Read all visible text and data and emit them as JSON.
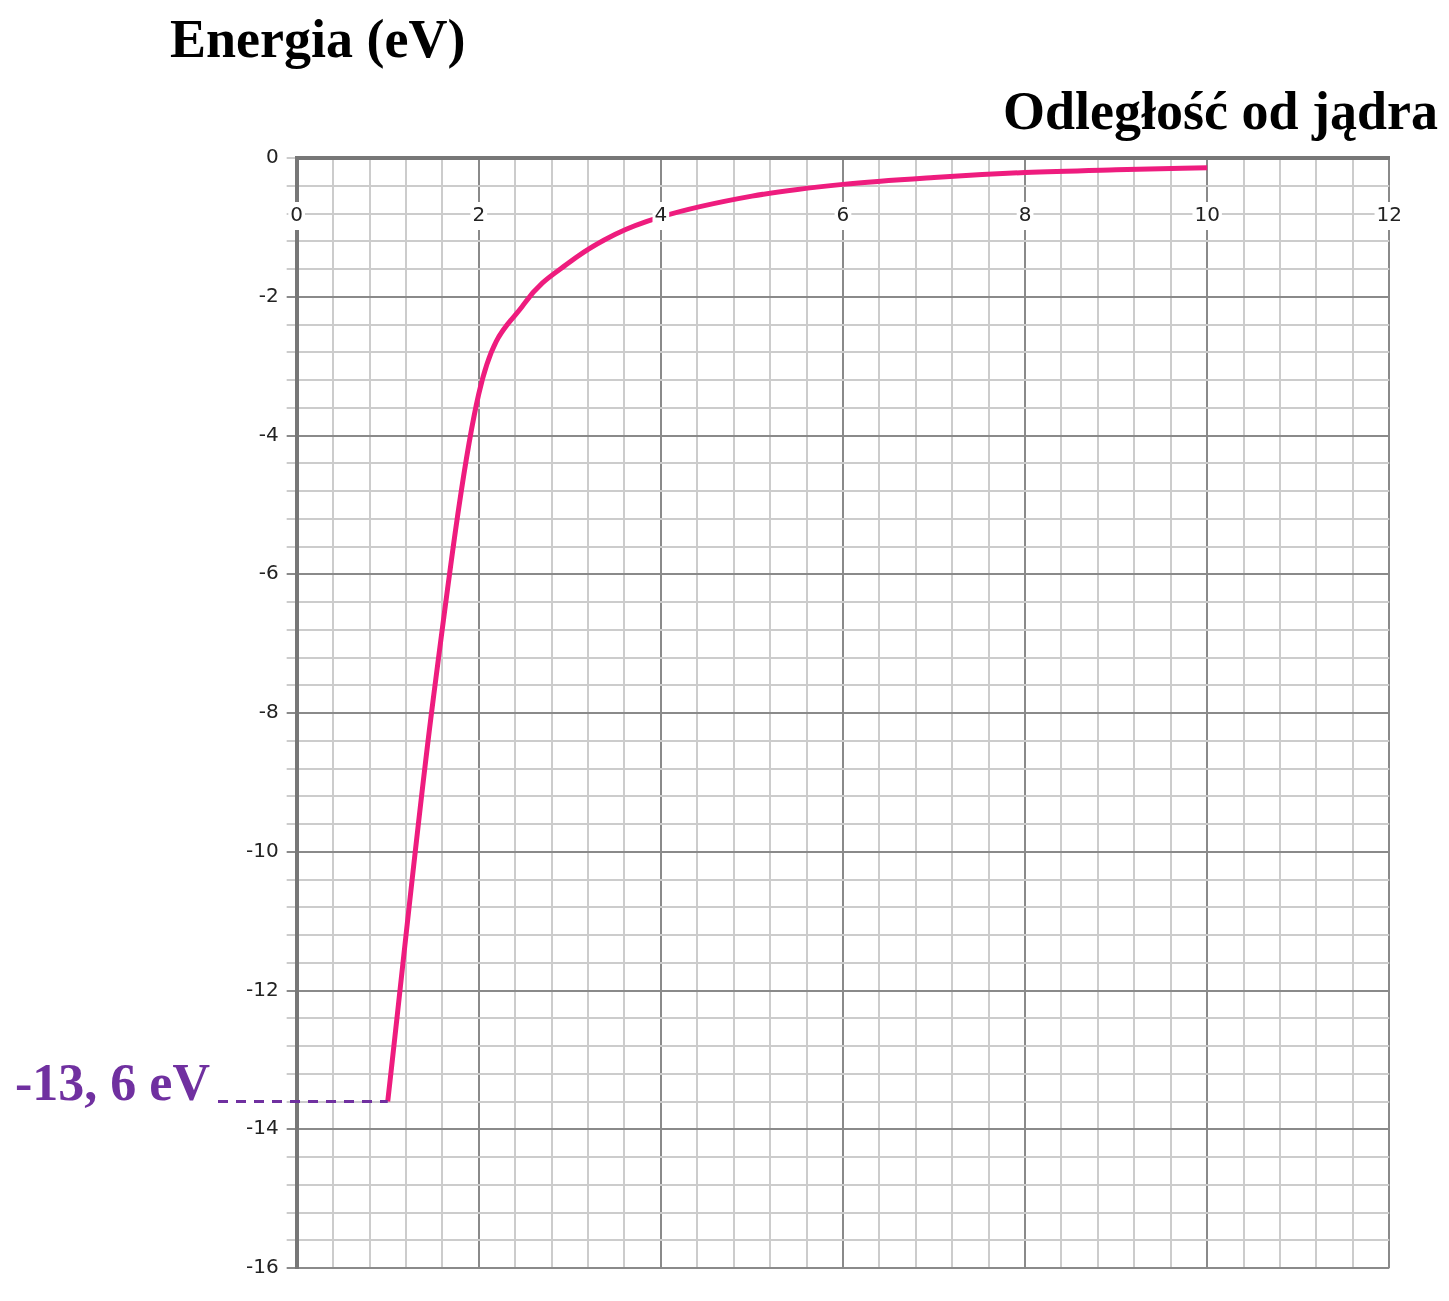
{
  "chart_data": {
    "type": "line",
    "xlabel": "Odległość od jądra",
    "ylabel": "Energia (eV)",
    "x": [
      1,
      1.5,
      2,
      2.5,
      3,
      3.5,
      4,
      5,
      6,
      7,
      8,
      9,
      10
    ],
    "series": [
      {
        "color": "#ee1c7e",
        "values": [
          -13.6,
          -7.8,
          -3.4,
          -2.1,
          -1.5,
          -1.1,
          -0.85,
          -0.55,
          -0.38,
          -0.28,
          -0.21,
          -0.17,
          -0.14
        ]
      }
    ],
    "xlim": [
      0,
      12
    ],
    "ylim": [
      -16,
      0
    ],
    "xticks": [
      0,
      {
        "value": 0.4,
        "label": null
      },
      {
        "value": 0.8,
        "label": null
      },
      {
        "value": 1.2,
        "label": null
      },
      {
        "value": 1.6,
        "label": null
      },
      2,
      {
        "value": 2.4,
        "label": null
      },
      {
        "value": 2.8,
        "label": null
      },
      {
        "value": 3.2,
        "label": null
      },
      {
        "value": 3.6,
        "label": null
      },
      4,
      {
        "value": 4.4,
        "label": null
      },
      {
        "value": 4.8,
        "label": null
      },
      {
        "value": 5.2,
        "label": null
      },
      {
        "value": 5.6,
        "label": null
      },
      6,
      {
        "value": 6.4,
        "label": null
      },
      {
        "value": 6.8,
        "label": null
      },
      {
        "value": 7.2,
        "label": null
      },
      {
        "value": 7.6,
        "label": null
      },
      8,
      {
        "value": 8.4,
        "label": null
      },
      {
        "value": 8.8,
        "label": null
      },
      {
        "value": 9.2,
        "label": null
      },
      {
        "value": 9.6,
        "label": null
      },
      10,
      {
        "value": 10.4,
        "label": null
      },
      {
        "value": 10.8,
        "label": null
      },
      {
        "value": 11.2,
        "label": null
      },
      {
        "value": 11.6,
        "label": null
      },
      12
    ],
    "yticks": [
      -16,
      {
        "value": -15.6,
        "label": null
      },
      {
        "value": -15.2,
        "label": null
      },
      {
        "value": -14.8,
        "label": null
      },
      {
        "value": -14.4,
        "label": null
      },
      -14,
      {
        "value": -13.6,
        "label": null
      },
      {
        "value": -13.2,
        "label": null
      },
      {
        "value": -12.8,
        "label": null
      },
      {
        "value": -12.4,
        "label": null
      },
      -12,
      {
        "value": -11.6,
        "label": null
      },
      {
        "value": -11.2,
        "label": null
      },
      {
        "value": -10.8,
        "label": null
      },
      {
        "value": -10.4,
        "label": null
      },
      -10,
      {
        "value": -9.6,
        "label": null
      },
      {
        "value": -9.2,
        "label": null
      },
      {
        "value": -8.8,
        "label": null
      },
      {
        "value": -8.4,
        "label": null
      },
      -8,
      {
        "value": -7.6,
        "label": null
      },
      {
        "value": -7.2,
        "label": null
      },
      {
        "value": -6.8,
        "label": null
      },
      {
        "value": -6.4,
        "label": null
      },
      -6,
      {
        "value": -5.6,
        "label": null
      },
      {
        "value": -5.2,
        "label": null
      },
      {
        "value": -4.8,
        "label": null
      },
      {
        "value": -4.4,
        "label": null
      },
      -4,
      {
        "value": -3.6,
        "label": null
      },
      {
        "value": -3.2,
        "label": null
      },
      {
        "value": -2.8,
        "label": null
      },
      {
        "value": -2.4,
        "label": null
      },
      -2,
      {
        "value": -1.6,
        "label": null
      },
      {
        "value": -1.2,
        "label": null
      },
      {
        "value": -0.8,
        "label": null
      },
      {
        "value": -0.4,
        "label": null
      },
      0
    ],
    "annotations": [
      {
        "text": "-13, 6 eV",
        "x": 1,
        "y": -13.6
      }
    ],
    "grid": true,
    "marker": "none",
    "line_style": "solid"
  }
}
